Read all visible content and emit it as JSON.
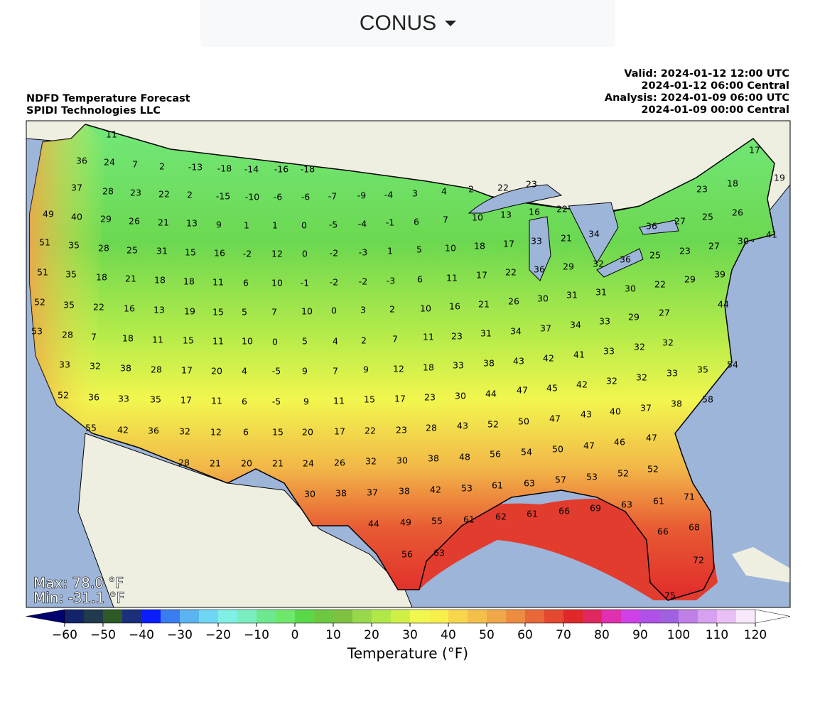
{
  "dropdown": {
    "label": "CONUS"
  },
  "header": {
    "title": "NDFD Temperature Forecast",
    "credit": "SPIDI Technologies LLC",
    "valid_utc": "Valid: 2024-01-12 12:00 UTC",
    "valid_central": "2024-01-12 06:00 Central",
    "analysis_utc": "Analysis: 2024-01-09 06:00 UTC",
    "analysis_central": "2024-01-09 00:00 Central"
  },
  "stats": {
    "max": "Max: 78.0 °F",
    "min": "Min: -31.1 °F"
  },
  "station_values": [
    11,
    36,
    24,
    7,
    2,
    -13,
    -18,
    -14,
    -16,
    -18,
    37,
    28,
    23,
    22,
    2,
    -15,
    -10,
    -6,
    -6,
    -7,
    -9,
    -4,
    3,
    4,
    2,
    22,
    23,
    17,
    19,
    18,
    23,
    49,
    40,
    29,
    26,
    21,
    13,
    9,
    1,
    1,
    0,
    -5,
    -4,
    -1,
    6,
    7,
    10,
    13,
    16,
    22,
    26,
    25,
    27,
    36,
    41,
    51,
    35,
    28,
    25,
    31,
    15,
    16,
    -2,
    12,
    0,
    -2,
    -3,
    1,
    5,
    10,
    18,
    17,
    33,
    21,
    34,
    27,
    30,
    23,
    25,
    36,
    32,
    51,
    35,
    18,
    21,
    18,
    18,
    11,
    6,
    10,
    -1,
    -2,
    -2,
    -3,
    6,
    11,
    17,
    22,
    36,
    29,
    39,
    29,
    22,
    30,
    31,
    31,
    30,
    26,
    21,
    16,
    10,
    2,
    3,
    0,
    10,
    7,
    5,
    15,
    19,
    13,
    16,
    22,
    35,
    52,
    44,
    27,
    29,
    33,
    34,
    37,
    34,
    31,
    23,
    11,
    7,
    2,
    4,
    5,
    0,
    10,
    11,
    15,
    11,
    18,
    7,
    28,
    53,
    32,
    32,
    33,
    41,
    42,
    43,
    38,
    33,
    18,
    12,
    9,
    7,
    9,
    -5,
    4,
    20,
    17,
    28,
    38,
    32,
    33,
    54,
    35,
    33,
    32,
    32,
    42,
    45,
    47,
    44,
    30,
    23,
    17,
    15,
    11,
    9,
    -5,
    6,
    11,
    17,
    35,
    33,
    36,
    52,
    58,
    38,
    37,
    40,
    43,
    47,
    50,
    52,
    43,
    28,
    23,
    22,
    17,
    20,
    15,
    6,
    12,
    32,
    36,
    42,
    55,
    47,
    46,
    47,
    50,
    54,
    56,
    48,
    38,
    30,
    32,
    26,
    24,
    21,
    20,
    21,
    28,
    52,
    52,
    53,
    57,
    63,
    61,
    53,
    42,
    38,
    37,
    38,
    30,
    71,
    61,
    63,
    69,
    66,
    61,
    62,
    61,
    55,
    49,
    44,
    68,
    66,
    63,
    56,
    72,
    75
  ],
  "colorbar": {
    "label": "Temperature (°F)",
    "lim": [
      -60,
      120
    ],
    "ticks": [
      {
        "value": -60,
        "label": "−60"
      },
      {
        "value": -50,
        "label": "−50"
      },
      {
        "value": -40,
        "label": "−40"
      },
      {
        "value": -30,
        "label": "−30"
      },
      {
        "value": -20,
        "label": "−20"
      },
      {
        "value": -10,
        "label": "−10"
      },
      0,
      10,
      20,
      30,
      40,
      50,
      60,
      70,
      80,
      90,
      100,
      110,
      120
    ],
    "step": 5,
    "under_color": "#00006e",
    "over_color": "#ffffff",
    "colors": [
      "#14246b",
      "#1f3b4d",
      "#2d5a27",
      "#1b2f7a",
      "#0a1eff",
      "#3a7df0",
      "#5ab4f0",
      "#6fd6f5",
      "#7ff0e6",
      "#7aeec0",
      "#6ee88e",
      "#6ee86a",
      "#5ad84a",
      "#6cc840",
      "#7fc040",
      "#98d84a",
      "#b0e848",
      "#d0f048",
      "#f0f850",
      "#f8f04a",
      "#f8d84a",
      "#f4c04a",
      "#f0a848",
      "#ec8c40",
      "#e86838",
      "#e44830",
      "#e02828",
      "#e02860",
      "#e030b0",
      "#d040e8",
      "#b050e8",
      "#a060e0",
      "#c080e8",
      "#d8a0f0",
      "#e8c0f4",
      "#f8e8fc"
    ]
  }
}
